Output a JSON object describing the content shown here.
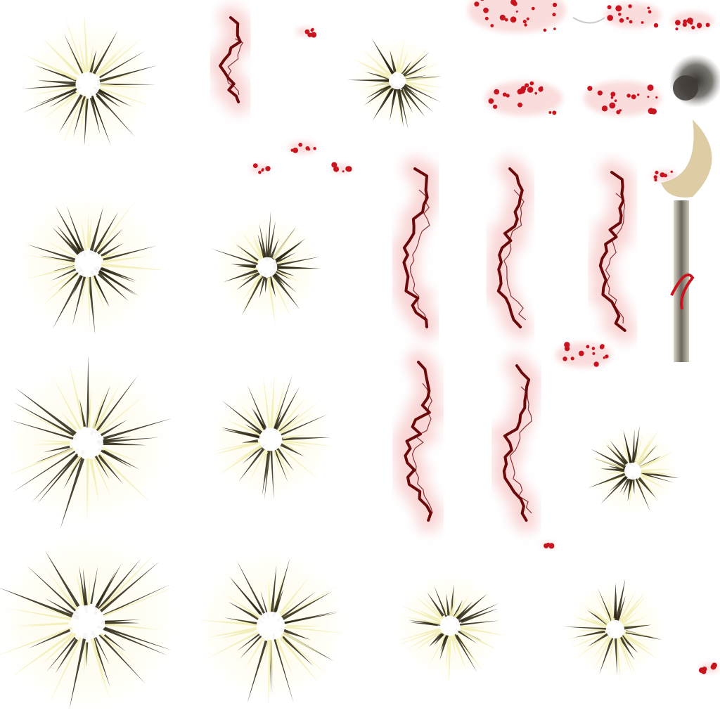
{
  "sprite_sheet": {
    "background": "#ffffff",
    "colors": {
      "burst_core": "#ffffff",
      "burst_glow": "#fff9dc",
      "burst_ray_light": "#f3eeb8",
      "burst_ray_dark": "#2a2410",
      "crack_dark": "#6a0a0a",
      "crack_glow": "#f4b2b2",
      "blood_splatter": "#c8141e",
      "smoke": "#3e3a36",
      "slash_arc": "#d9c79a",
      "blade_steel": "#6e6a5e"
    },
    "sprite_groups": [
      {
        "kind": "light-burst",
        "count": 11
      },
      {
        "kind": "blood-crack",
        "count": 7
      },
      {
        "kind": "blood-splatter",
        "count": 12
      },
      {
        "kind": "smoke-puff",
        "count": 1
      },
      {
        "kind": "crescent-slash",
        "count": 2
      },
      {
        "kind": "blade-streak",
        "count": 1
      }
    ]
  }
}
